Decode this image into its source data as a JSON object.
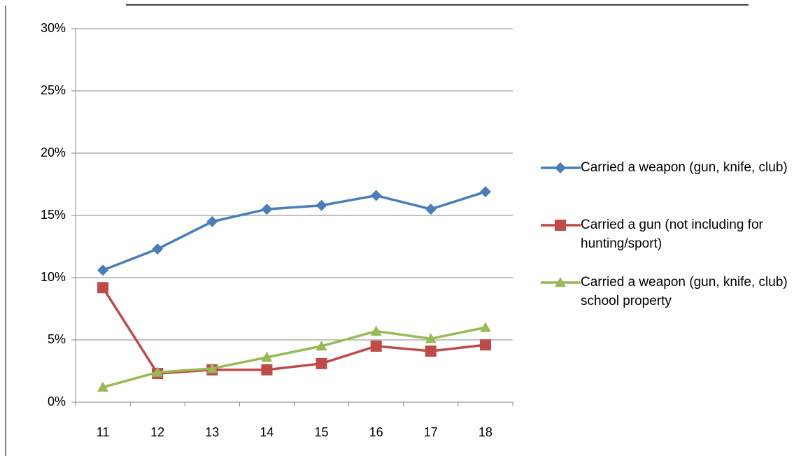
{
  "chart_data": {
    "type": "line",
    "categories": [
      "11",
      "12",
      "13",
      "14",
      "15",
      "16",
      "17",
      "18"
    ],
    "series": [
      {
        "name": "Carried a weapon (gun, knife, club)",
        "color": "#4a7ebb",
        "marker": "diamond",
        "values": [
          10.6,
          12.3,
          14.5,
          15.5,
          15.8,
          16.6,
          15.5,
          16.9
        ]
      },
      {
        "name": "Carried a gun (not including for hunting/sport)",
        "color": "#be4b48",
        "marker": "square",
        "values": [
          9.2,
          2.3,
          2.6,
          2.6,
          3.1,
          4.5,
          4.1,
          4.6
        ]
      },
      {
        "name": "Carried a weapon (gun, knife, club) school property",
        "color": "#98b954",
        "marker": "triangle",
        "values": [
          1.2,
          2.4,
          2.7,
          3.6,
          4.5,
          5.7,
          5.1,
          6.0
        ]
      }
    ],
    "ylim": [
      0,
      30
    ],
    "yticks": [
      {
        "value": 0,
        "label": "0%"
      },
      {
        "value": 5,
        "label": "5%"
      },
      {
        "value": 10,
        "label": "10%"
      },
      {
        "value": 15,
        "label": "15%"
      },
      {
        "value": 20,
        "label": "20%"
      },
      {
        "value": 25,
        "label": "25%"
      },
      {
        "value": 30,
        "label": "30%"
      }
    ],
    "grid": true,
    "legend": "right"
  }
}
